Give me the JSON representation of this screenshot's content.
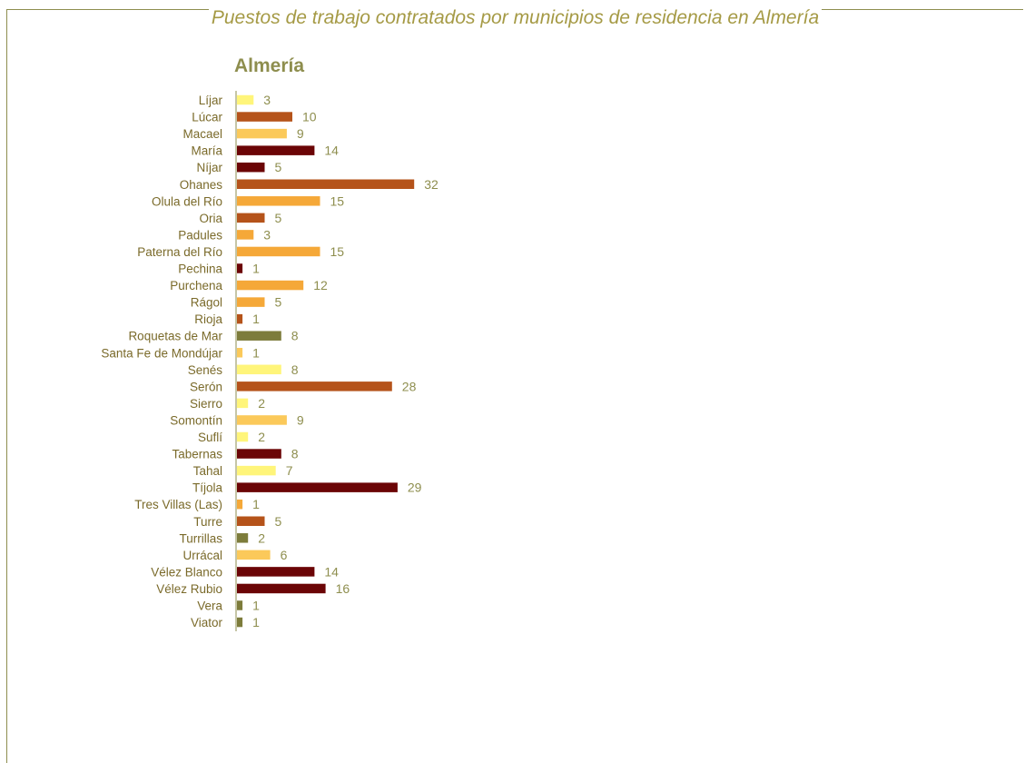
{
  "header": {
    "title": "Puestos de trabajo contratados por municipios de residencia en Almería"
  },
  "chart_data": {
    "type": "bar",
    "orientation": "horizontal",
    "title": "Almería",
    "xlabel": "",
    "ylabel": "",
    "grid": false,
    "legend": "none",
    "xlim": [
      0,
      33
    ],
    "categories": [
      "Líjar",
      "Lúcar",
      "Macael",
      "María",
      "Níjar",
      "Ohanes",
      "Olula del Río",
      "Oria",
      "Padules",
      "Paterna del Río",
      "Pechina",
      "Purchena",
      "Rágol",
      "Rioja",
      "Roquetas de Mar",
      "Santa Fe de Mondújar",
      "Senés",
      "Serón",
      "Sierro",
      "Somontín",
      "Suflí",
      "Tabernas",
      "Tahal",
      "Tíjola",
      "Tres Villas (Las)",
      "Turre",
      "Turrillas",
      "Urrácal",
      "Vélez Blanco",
      "Vélez Rubio",
      "Vera",
      "Viator"
    ],
    "values": [
      3,
      10,
      9,
      14,
      5,
      32,
      15,
      5,
      3,
      15,
      1,
      12,
      5,
      1,
      8,
      1,
      8,
      28,
      2,
      9,
      2,
      8,
      7,
      29,
      1,
      5,
      2,
      6,
      14,
      16,
      1,
      1
    ],
    "colors": [
      "#fff57a",
      "#b5531a",
      "#fbc95a",
      "#6b0506",
      "#6b0506",
      "#b5531a",
      "#f5a838",
      "#b5531a",
      "#f5a838",
      "#f5a838",
      "#6b0506",
      "#f5a838",
      "#f5a838",
      "#b5531a",
      "#7d7c3b",
      "#fbc95a",
      "#fff57a",
      "#b5531a",
      "#fff57a",
      "#fbc95a",
      "#fff57a",
      "#6b0506",
      "#fff57a",
      "#6b0506",
      "#f5a838",
      "#b5531a",
      "#7d7c3b",
      "#fbc95a",
      "#6b0506",
      "#6b0506",
      "#7d7c3b",
      "#7d7c3b"
    ]
  }
}
